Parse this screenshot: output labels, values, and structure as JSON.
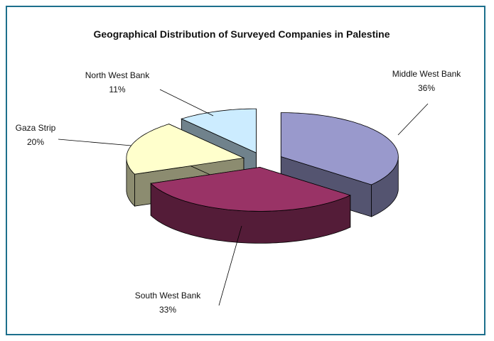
{
  "chart_data": {
    "type": "pie3d",
    "title": "Geographical Distribution of Surveyed Companies in Palestine",
    "categories": [
      "Middle West Bank",
      "South West Bank",
      "Gaza Strip",
      "North West Bank"
    ],
    "values": [
      36,
      33,
      20,
      11
    ],
    "value_labels": [
      "36%",
      "33%",
      "20%",
      "11%"
    ],
    "colors": [
      "#9999cc",
      "#993366",
      "#ffffcc",
      "#ccecff"
    ]
  }
}
